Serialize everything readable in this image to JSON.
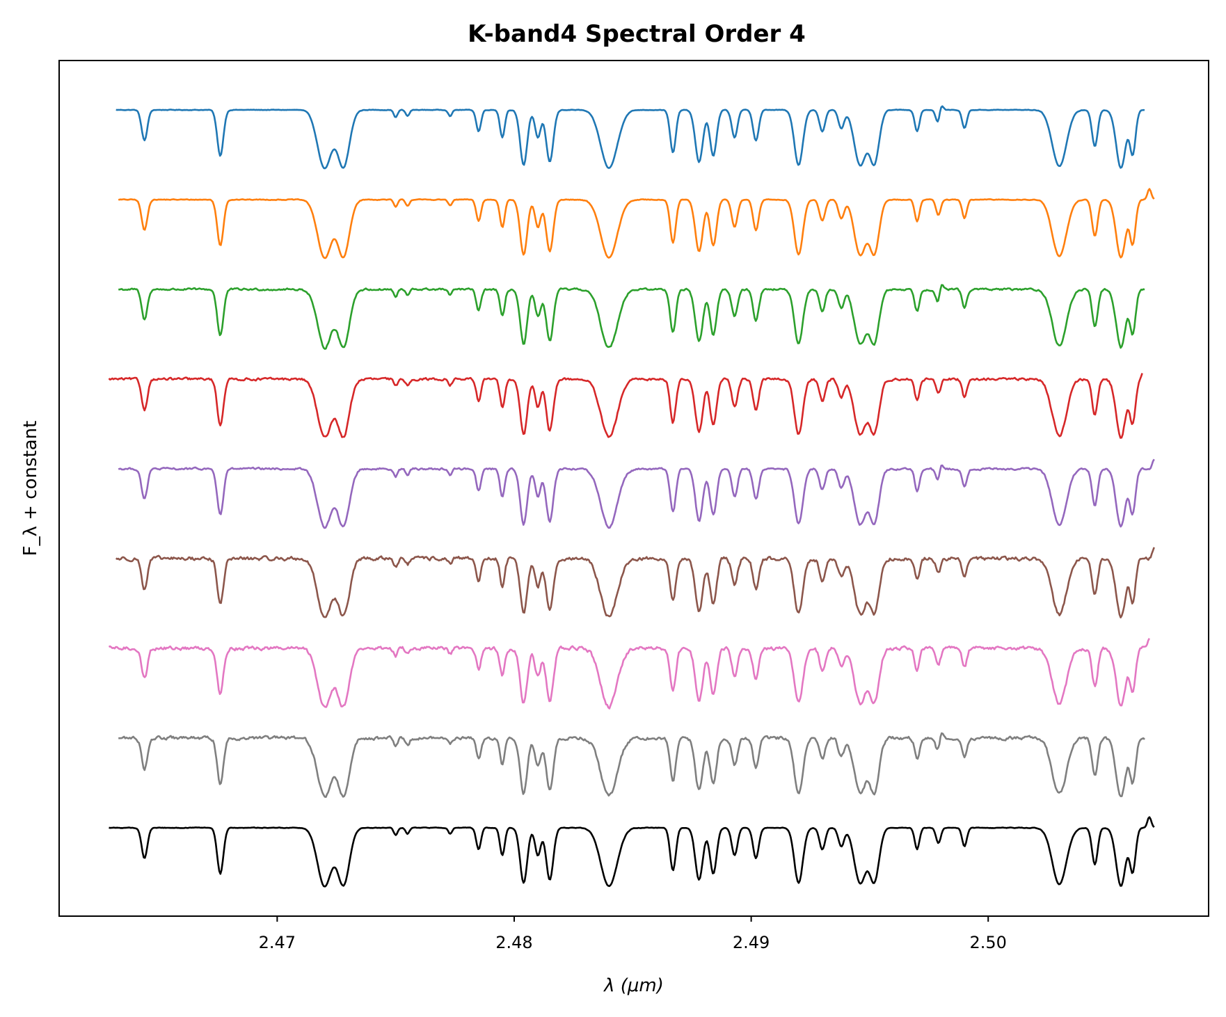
{
  "chart_data": {
    "type": "line",
    "title": "K-band4 Spectral Order 4",
    "xlabel": "λ (μm)",
    "ylabel": "F_λ + constant",
    "xlim": [
      2.4608,
      2.5093
    ],
    "x_ticks": [
      2.47,
      2.48,
      2.49,
      2.5
    ],
    "x_tick_labels": [
      "2.47",
      "2.48",
      "2.49",
      "2.50"
    ],
    "y_ticks": [],
    "grid": false,
    "legend": "none",
    "x_range": [
      2.463,
      2.5068
    ],
    "absorption_lines": [
      {
        "center": 2.4644,
        "depth": 0.5,
        "width": 0.00012
      },
      {
        "center": 2.4676,
        "depth": 0.75,
        "width": 0.00013
      },
      {
        "center": 2.472,
        "depth": 0.95,
        "width": 0.0003
      },
      {
        "center": 2.4728,
        "depth": 0.92,
        "width": 0.00025
      },
      {
        "center": 2.475,
        "depth": 0.12,
        "width": 8e-05
      },
      {
        "center": 2.4755,
        "depth": 0.1,
        "width": 8e-05
      },
      {
        "center": 2.4773,
        "depth": 0.1,
        "width": 8e-05
      },
      {
        "center": 2.4785,
        "depth": 0.35,
        "width": 0.0001
      },
      {
        "center": 2.4795,
        "depth": 0.45,
        "width": 0.0001
      },
      {
        "center": 2.4804,
        "depth": 0.9,
        "width": 0.00015
      },
      {
        "center": 2.481,
        "depth": 0.45,
        "width": 0.00012
      },
      {
        "center": 2.4815,
        "depth": 0.85,
        "width": 0.00015
      },
      {
        "center": 2.484,
        "depth": 0.95,
        "width": 0.00035
      },
      {
        "center": 2.4867,
        "depth": 0.7,
        "width": 0.00012
      },
      {
        "center": 2.4878,
        "depth": 0.85,
        "width": 0.00016
      },
      {
        "center": 2.4884,
        "depth": 0.75,
        "width": 0.00014
      },
      {
        "center": 2.4893,
        "depth": 0.45,
        "width": 0.00012
      },
      {
        "center": 2.4902,
        "depth": 0.5,
        "width": 0.00012
      },
      {
        "center": 2.492,
        "depth": 0.9,
        "width": 0.00018
      },
      {
        "center": 2.493,
        "depth": 0.35,
        "width": 0.00012
      },
      {
        "center": 2.4938,
        "depth": 0.3,
        "width": 0.00012
      },
      {
        "center": 2.4946,
        "depth": 0.9,
        "width": 0.00025
      },
      {
        "center": 2.4952,
        "depth": 0.85,
        "width": 0.0002
      },
      {
        "center": 2.497,
        "depth": 0.35,
        "width": 0.0001
      },
      {
        "center": 2.4979,
        "depth": 0.25,
        "width": 0.0001
      },
      {
        "center": 2.499,
        "depth": 0.3,
        "width": 0.0001
      },
      {
        "center": 2.503,
        "depth": 0.92,
        "width": 0.0003
      },
      {
        "center": 2.5045,
        "depth": 0.6,
        "width": 0.00012
      },
      {
        "center": 2.5056,
        "depth": 0.95,
        "width": 0.0002
      },
      {
        "center": 2.5061,
        "depth": 0.7,
        "width": 0.00012
      }
    ],
    "series": [
      {
        "color": "#1f77b4",
        "offset": 8,
        "noise": 0.03,
        "emission": [
          2.498
        ],
        "x_start": 2.4632,
        "x_end": 2.5066
      },
      {
        "color": "#ff7f0e",
        "offset": 7,
        "noise": 0.04,
        "emission": [
          2.5068
        ],
        "x_start": 2.4633,
        "x_end": 2.507
      },
      {
        "color": "#2ca02c",
        "offset": 6,
        "noise": 0.1,
        "emission": [
          2.498
        ],
        "x_start": 2.4633,
        "x_end": 2.5066
      },
      {
        "color": "#d62728",
        "offset": 5,
        "noise": 0.12,
        "emission": [
          2.5066
        ],
        "x_start": 2.4629,
        "x_end": 2.5065
      },
      {
        "color": "#9467bd",
        "offset": 4,
        "noise": 0.1,
        "emission": [
          2.498,
          2.507
        ],
        "x_start": 2.4633,
        "x_end": 2.507
      },
      {
        "color": "#8c564b",
        "offset": 3,
        "noise": 0.18,
        "emission": [
          2.507
        ],
        "x_start": 2.4632,
        "x_end": 2.507
      },
      {
        "color": "#e377c2",
        "offset": 2,
        "noise": 0.18,
        "emission": [
          2.5068
        ],
        "x_start": 2.4629,
        "x_end": 2.5068
      },
      {
        "color": "#7f7f7f",
        "offset": 1,
        "noise": 0.16,
        "emission": [
          2.498
        ],
        "x_start": 2.4633,
        "x_end": 2.5066
      },
      {
        "color": "#000000",
        "offset": 0,
        "noise": 0.03,
        "emission": [
          2.5068
        ],
        "x_start": 2.4629,
        "x_end": 2.507
      }
    ]
  }
}
